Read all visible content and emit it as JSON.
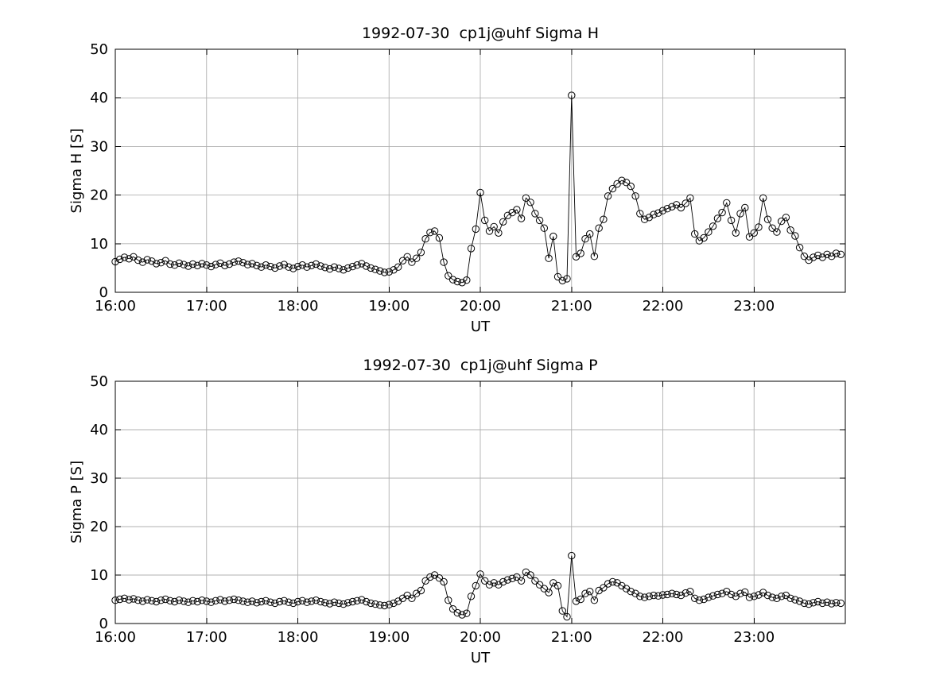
{
  "figure": {
    "background": "#ffffff",
    "axis_color": "#000000",
    "grid_color": "#b0b0b0",
    "series_color": "#000000",
    "marker": "open-circle"
  },
  "chart_data": [
    {
      "type": "line",
      "title": "1992-07-30  cp1j@uhf Sigma H",
      "xlabel": "UT",
      "ylabel": "Sigma H [S]",
      "xlim": [
        16,
        24
      ],
      "ylim": [
        0,
        50
      ],
      "xticks": [
        16,
        17,
        18,
        19,
        20,
        21,
        22,
        23
      ],
      "xtick_labels": [
        "16:00",
        "17:00",
        "18:00",
        "19:00",
        "20:00",
        "21:00",
        "22:00",
        "23:00"
      ],
      "yticks": [
        0,
        10,
        20,
        30,
        40,
        50
      ],
      "ytick_labels": [
        "0",
        "10",
        "20",
        "30",
        "40",
        "50"
      ],
      "grid": true,
      "legend": "none",
      "x": {
        "start": 16.0,
        "step": 0.05,
        "count": 160
      },
      "y": [
        6.3,
        6.8,
        7.2,
        6.9,
        7.3,
        6.6,
        6.2,
        6.7,
        6.4,
        5.9,
        6.1,
        6.5,
        5.8,
        5.6,
        6.0,
        5.7,
        5.4,
        5.8,
        5.5,
        5.9,
        5.6,
        5.3,
        5.7,
        6.0,
        5.5,
        5.8,
        6.2,
        6.4,
        6.1,
        5.7,
        5.9,
        5.5,
        5.2,
        5.6,
        5.3,
        5.0,
        5.4,
        5.7,
        5.2,
        4.9,
        5.3,
        5.6,
        5.2,
        5.5,
        5.8,
        5.4,
        5.1,
        4.8,
        5.2,
        4.9,
        4.6,
        5.0,
        5.3,
        5.6,
        5.9,
        5.4,
        5.0,
        4.7,
        4.4,
        4.1,
        4.2,
        4.6,
        5.2,
        6.5,
        7.3,
        6.2,
        7.0,
        8.2,
        11.0,
        12.3,
        12.6,
        11.2,
        6.2,
        3.4,
        2.6,
        2.2,
        2.0,
        2.5,
        9.0,
        13.0,
        20.5,
        14.8,
        12.6,
        13.5,
        12.2,
        14.5,
        15.8,
        16.4,
        17.0,
        15.2,
        19.4,
        18.5,
        16.2,
        14.8,
        13.2,
        7.0,
        11.5,
        3.2,
        2.4,
        2.8,
        40.5,
        7.3,
        8.0,
        11.0,
        12.0,
        7.4,
        13.2,
        15.0,
        19.8,
        21.3,
        22.3,
        23.0,
        22.6,
        21.8,
        19.8,
        16.2,
        15.0,
        15.4,
        16.0,
        16.3,
        16.8,
        17.2,
        17.6,
        18.0,
        17.4,
        18.3,
        19.4,
        12.0,
        10.6,
        11.2,
        12.4,
        13.6,
        15.2,
        16.4,
        18.4,
        14.8,
        12.2,
        16.2,
        17.4,
        11.4,
        12.2,
        13.4,
        19.4,
        15.0,
        13.2,
        12.4,
        14.6,
        15.4,
        12.8,
        11.6,
        9.2,
        7.4,
        6.6,
        7.2,
        7.6,
        7.2,
        7.8,
        7.4,
        8.0,
        7.8
      ]
    },
    {
      "type": "line",
      "title": "1992-07-30  cp1j@uhf Sigma P",
      "xlabel": "UT",
      "ylabel": "Sigma P [S]",
      "xlim": [
        16,
        24
      ],
      "ylim": [
        0,
        50
      ],
      "xticks": [
        16,
        17,
        18,
        19,
        20,
        21,
        22,
        23
      ],
      "xtick_labels": [
        "16:00",
        "17:00",
        "18:00",
        "19:00",
        "20:00",
        "21:00",
        "22:00",
        "23:00"
      ],
      "yticks": [
        0,
        10,
        20,
        30,
        40,
        50
      ],
      "ytick_labels": [
        "0",
        "10",
        "20",
        "30",
        "40",
        "50"
      ],
      "grid": true,
      "legend": "none",
      "x": {
        "start": 16.0,
        "step": 0.05,
        "count": 160
      },
      "y": [
        4.8,
        5.0,
        5.2,
        4.9,
        5.1,
        4.8,
        4.6,
        4.9,
        4.7,
        4.5,
        4.8,
        5.0,
        4.7,
        4.5,
        4.8,
        4.6,
        4.4,
        4.7,
        4.5,
        4.8,
        4.6,
        4.4,
        4.7,
        4.9,
        4.6,
        4.8,
        5.0,
        4.8,
        4.6,
        4.4,
        4.6,
        4.3,
        4.5,
        4.7,
        4.4,
        4.2,
        4.5,
        4.7,
        4.4,
        4.2,
        4.5,
        4.7,
        4.4,
        4.6,
        4.8,
        4.5,
        4.3,
        4.1,
        4.4,
        4.2,
        4.0,
        4.3,
        4.5,
        4.7,
        4.9,
        4.5,
        4.2,
        4.0,
        3.8,
        3.7,
        3.9,
        4.2,
        4.6,
        5.2,
        5.8,
        5.2,
        6.2,
        6.8,
        8.8,
        9.6,
        10.0,
        9.4,
        8.6,
        4.8,
        3.0,
        2.2,
        1.8,
        2.1,
        5.6,
        7.8,
        10.2,
        8.8,
        8.0,
        8.4,
        8.0,
        8.6,
        9.0,
        9.3,
        9.6,
        8.8,
        10.6,
        10.0,
        8.8,
        8.0,
        7.2,
        6.4,
        8.4,
        7.8,
        2.6,
        1.4,
        14.0,
        4.6,
        5.0,
        6.2,
        6.6,
        4.8,
        6.8,
        7.4,
        8.2,
        8.6,
        8.4,
        7.8,
        7.2,
        6.6,
        6.2,
        5.6,
        5.4,
        5.6,
        5.8,
        5.7,
        5.9,
        6.0,
        6.2,
        6.0,
        5.8,
        6.3,
        6.6,
        5.2,
        4.8,
        5.0,
        5.4,
        5.7,
        6.0,
        6.2,
        6.6,
        6.0,
        5.6,
        6.2,
        6.5,
        5.4,
        5.6,
        5.9,
        6.4,
        5.8,
        5.4,
        5.2,
        5.6,
        5.8,
        5.2,
        4.9,
        4.6,
        4.2,
        4.0,
        4.3,
        4.5,
        4.2,
        4.4,
        4.1,
        4.3,
        4.2
      ]
    }
  ]
}
